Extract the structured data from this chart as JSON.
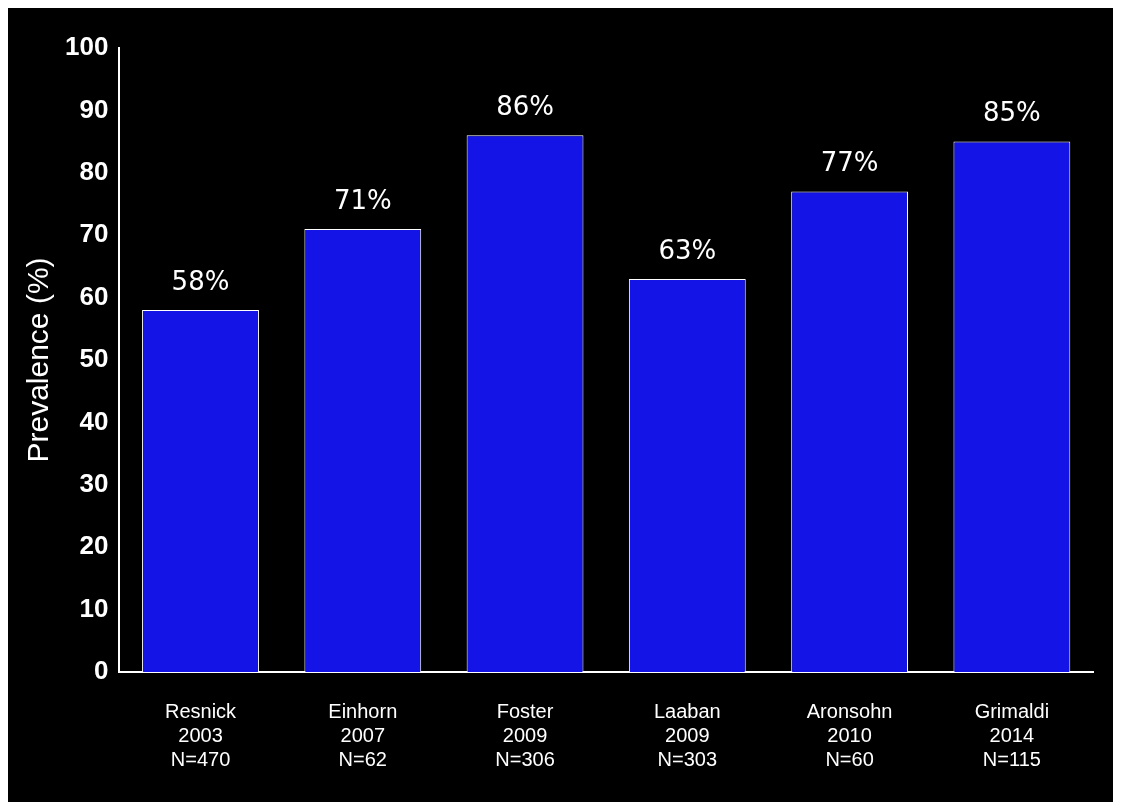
{
  "chart_data": {
    "type": "bar",
    "ylabel": "Prevalence (%)",
    "categories": [
      "Resnick\n2003\nN=470",
      "Einhorn\n2007\nN=62",
      "Foster\n2009\nN=306",
      "Laaban\n2009\nN=303",
      "Aronsohn\n2010\nN=60",
      "Grimaldi\n2014\nN=115"
    ],
    "values": [
      58,
      71,
      86,
      63,
      77,
      85
    ],
    "value_labels": [
      "58%",
      "71%",
      "86%",
      "63%",
      "77%",
      "85%"
    ],
    "color": "#1414e6",
    "ylim": [
      0,
      100
    ],
    "yticks": [
      0,
      10,
      20,
      30,
      40,
      50,
      60,
      70,
      80,
      90,
      100
    ]
  }
}
